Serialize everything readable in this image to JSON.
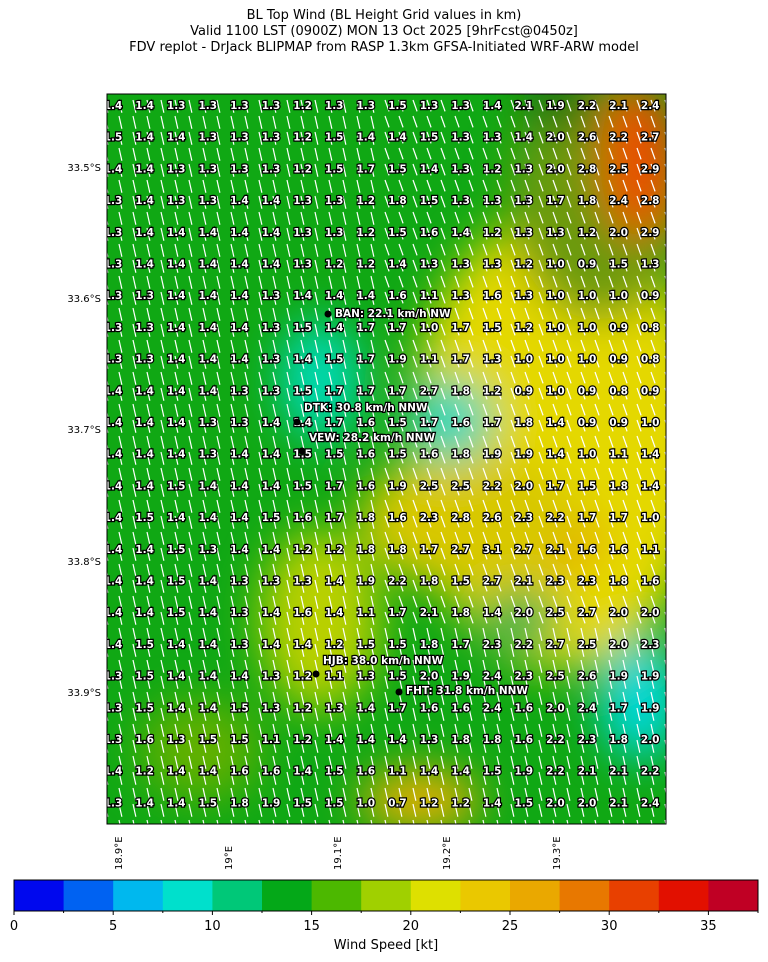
{
  "title": {
    "line1": "BL Top Wind (BL Height Grid values in km)",
    "line2": "Valid 1100 LST (0900Z) MON 13 Oct 2025 [9hrFcst@0450z]",
    "line3": "FDV replot - DrJack BLIPMAP from RASP 1.3km GFSA-Initiated WRF-ARW model"
  },
  "map": {
    "lat_labels": [
      "33.5°S",
      "33.6°S",
      "33.7°S",
      "33.8°S",
      "33.9°S"
    ],
    "lon_labels": [
      "18.9°E",
      "19°E",
      "19.1°E",
      "19.2°E",
      "19.3°E"
    ],
    "wind_direction": "NNW",
    "arrow_color": "#ffffff",
    "grid_values": [
      [
        "1.4",
        "1.4",
        "1.3",
        "1.3",
        "1.3",
        "1.3",
        "1.2",
        "1.3",
        "1.3",
        "1.5",
        "1.3",
        "1.3",
        "1.4",
        "2.1",
        "1.9",
        "2.2",
        "2.1",
        "2.4"
      ],
      [
        "1.5",
        "1.4",
        "1.4",
        "1.3",
        "1.3",
        "1.3",
        "1.2",
        "1.5",
        "1.4",
        "1.4",
        "1.5",
        "1.3",
        "1.3",
        "1.4",
        "2.0",
        "2.6",
        "2.2",
        "2.7"
      ],
      [
        "1.4",
        "1.4",
        "1.3",
        "1.3",
        "1.3",
        "1.3",
        "1.2",
        "1.5",
        "1.7",
        "1.5",
        "1.4",
        "1.3",
        "1.2",
        "1.3",
        "2.0",
        "2.8",
        "2.5",
        "2.9"
      ],
      [
        "1.3",
        "1.4",
        "1.3",
        "1.3",
        "1.4",
        "1.4",
        "1.3",
        "1.3",
        "1.2",
        "1.8",
        "1.5",
        "1.3",
        "1.3",
        "1.3",
        "1.7",
        "1.8",
        "2.4",
        "2.8"
      ],
      [
        "1.3",
        "1.4",
        "1.4",
        "1.4",
        "1.4",
        "1.4",
        "1.3",
        "1.3",
        "1.2",
        "1.5",
        "1.6",
        "1.4",
        "1.2",
        "1.3",
        "1.3",
        "1.2",
        "2.0",
        "2.9"
      ],
      [
        "1.3",
        "1.4",
        "1.4",
        "1.4",
        "1.4",
        "1.4",
        "1.3",
        "1.2",
        "1.2",
        "1.4",
        "1.3",
        "1.3",
        "1.3",
        "1.2",
        "1.0",
        "0.9",
        "1.5",
        "1.3"
      ],
      [
        "1.3",
        "1.3",
        "1.4",
        "1.4",
        "1.4",
        "1.3",
        "1.4",
        "1.4",
        "1.4",
        "1.6",
        "1.1",
        "1.3",
        "1.6",
        "1.3",
        "1.0",
        "1.0",
        "1.0",
        "0.9"
      ],
      [
        "1.3",
        "1.3",
        "1.4",
        "1.4",
        "1.4",
        "1.3",
        "1.5",
        "1.4",
        "1.7",
        "1.7",
        "1.0",
        "1.7",
        "1.5",
        "1.2",
        "1.0",
        "1.0",
        "0.9",
        "0.8"
      ],
      [
        "1.3",
        "1.3",
        "1.4",
        "1.4",
        "1.4",
        "1.3",
        "1.4",
        "1.5",
        "1.7",
        "1.9",
        "1.1",
        "1.7",
        "1.3",
        "1.0",
        "1.0",
        "1.0",
        "0.9",
        "0.8"
      ],
      [
        "1.4",
        "1.4",
        "1.4",
        "1.4",
        "1.3",
        "1.3",
        "1.5",
        "1.7",
        "1.7",
        "1.7",
        "2.7",
        "1.8",
        "1.2",
        "0.9",
        "1.0",
        "0.9",
        "0.8",
        "0.9"
      ],
      [
        "1.4",
        "1.4",
        "1.4",
        "1.3",
        "1.3",
        "1.4",
        "1.4",
        "1.7",
        "1.6",
        "1.5",
        "1.7",
        "1.6",
        "1.7",
        "1.8",
        "1.4",
        "0.9",
        "0.9",
        "1.0"
      ],
      [
        "1.4",
        "1.4",
        "1.4",
        "1.3",
        "1.4",
        "1.4",
        "1.5",
        "1.5",
        "1.6",
        "1.5",
        "1.6",
        "1.8",
        "1.9",
        "1.9",
        "1.4",
        "1.0",
        "1.1",
        "1.4"
      ],
      [
        "1.4",
        "1.4",
        "1.5",
        "1.4",
        "1.4",
        "1.4",
        "1.5",
        "1.7",
        "1.6",
        "1.9",
        "2.5",
        "2.5",
        "2.2",
        "2.0",
        "1.7",
        "1.5",
        "1.8",
        "1.4"
      ],
      [
        "1.4",
        "1.5",
        "1.4",
        "1.4",
        "1.4",
        "1.5",
        "1.6",
        "1.7",
        "1.8",
        "1.6",
        "2.3",
        "2.8",
        "2.6",
        "2.3",
        "2.2",
        "1.7",
        "1.7",
        "1.0"
      ],
      [
        "1.4",
        "1.4",
        "1.5",
        "1.3",
        "1.4",
        "1.4",
        "1.2",
        "1.2",
        "1.8",
        "1.8",
        "1.7",
        "2.7",
        "3.1",
        "2.7",
        "2.1",
        "1.6",
        "1.6",
        "1.1"
      ],
      [
        "1.4",
        "1.4",
        "1.5",
        "1.4",
        "1.3",
        "1.3",
        "1.3",
        "1.4",
        "1.9",
        "2.2",
        "1.8",
        "1.5",
        "2.7",
        "2.1",
        "2.3",
        "2.3",
        "1.8",
        "1.6"
      ],
      [
        "1.4",
        "1.4",
        "1.5",
        "1.4",
        "1.3",
        "1.4",
        "1.6",
        "1.4",
        "1.1",
        "1.7",
        "2.1",
        "1.8",
        "1.4",
        "2.0",
        "2.5",
        "2.7",
        "2.0",
        "2.0"
      ],
      [
        "1.4",
        "1.5",
        "1.4",
        "1.4",
        "1.3",
        "1.4",
        "1.4",
        "1.2",
        "1.5",
        "1.5",
        "1.8",
        "1.7",
        "2.3",
        "2.2",
        "2.7",
        "2.5",
        "2.0",
        "2.3"
      ],
      [
        "1.3",
        "1.5",
        "1.4",
        "1.4",
        "1.4",
        "1.3",
        "1.2",
        "1.1",
        "1.3",
        "1.5",
        "2.0",
        "1.9",
        "2.4",
        "2.3",
        "2.5",
        "2.6",
        "1.9",
        "1.9"
      ],
      [
        "1.3",
        "1.5",
        "1.4",
        "1.4",
        "1.5",
        "1.3",
        "1.2",
        "1.3",
        "1.4",
        "1.7",
        "1.6",
        "1.6",
        "2.4",
        "1.6",
        "2.0",
        "2.4",
        "1.7",
        "1.9"
      ],
      [
        "1.3",
        "1.6",
        "1.3",
        "1.5",
        "1.5",
        "1.1",
        "1.2",
        "1.4",
        "1.4",
        "1.4",
        "1.3",
        "1.8",
        "1.8",
        "1.6",
        "2.2",
        "2.3",
        "1.8",
        "2.0"
      ],
      [
        "1.4",
        "1.2",
        "1.4",
        "1.4",
        "1.6",
        "1.6",
        "1.4",
        "1.5",
        "1.6",
        "1.1",
        "1.4",
        "1.4",
        "1.5",
        "1.9",
        "2.2",
        "2.1",
        "2.1",
        "2.2"
      ],
      [
        "1.3",
        "1.4",
        "1.4",
        "1.5",
        "1.8",
        "1.9",
        "1.5",
        "1.5",
        "1.0",
        "0.7",
        "1.2",
        "1.2",
        "1.4",
        "1.5",
        "2.0",
        "2.0",
        "2.1",
        "2.4"
      ]
    ],
    "sites": [
      {
        "label": "BAN: 22.1 km/h NW"
      },
      {
        "label": "DTK: 30.8 km/h NNW"
      },
      {
        "label": "VEW: 28.2 km/h NNW"
      },
      {
        "label": "HJB: 38.0 km/h NNW"
      },
      {
        "label": "FHT: 31.8 km/h NNW"
      }
    ]
  },
  "colorbar": {
    "label": "Wind Speed [kt]",
    "range": [
      0,
      37.5
    ],
    "tick_labels": [
      "0",
      "5",
      "10",
      "15",
      "20",
      "25",
      "30",
      "35"
    ],
    "colors": [
      "#0008ee",
      "#0062f2",
      "#00b8ee",
      "#00e0cc",
      "#00c878",
      "#04a818",
      "#4cb800",
      "#a0d000",
      "#dee000",
      "#eac800",
      "#eaa800",
      "#e87800",
      "#e84000",
      "#e21000",
      "#c00024"
    ]
  }
}
